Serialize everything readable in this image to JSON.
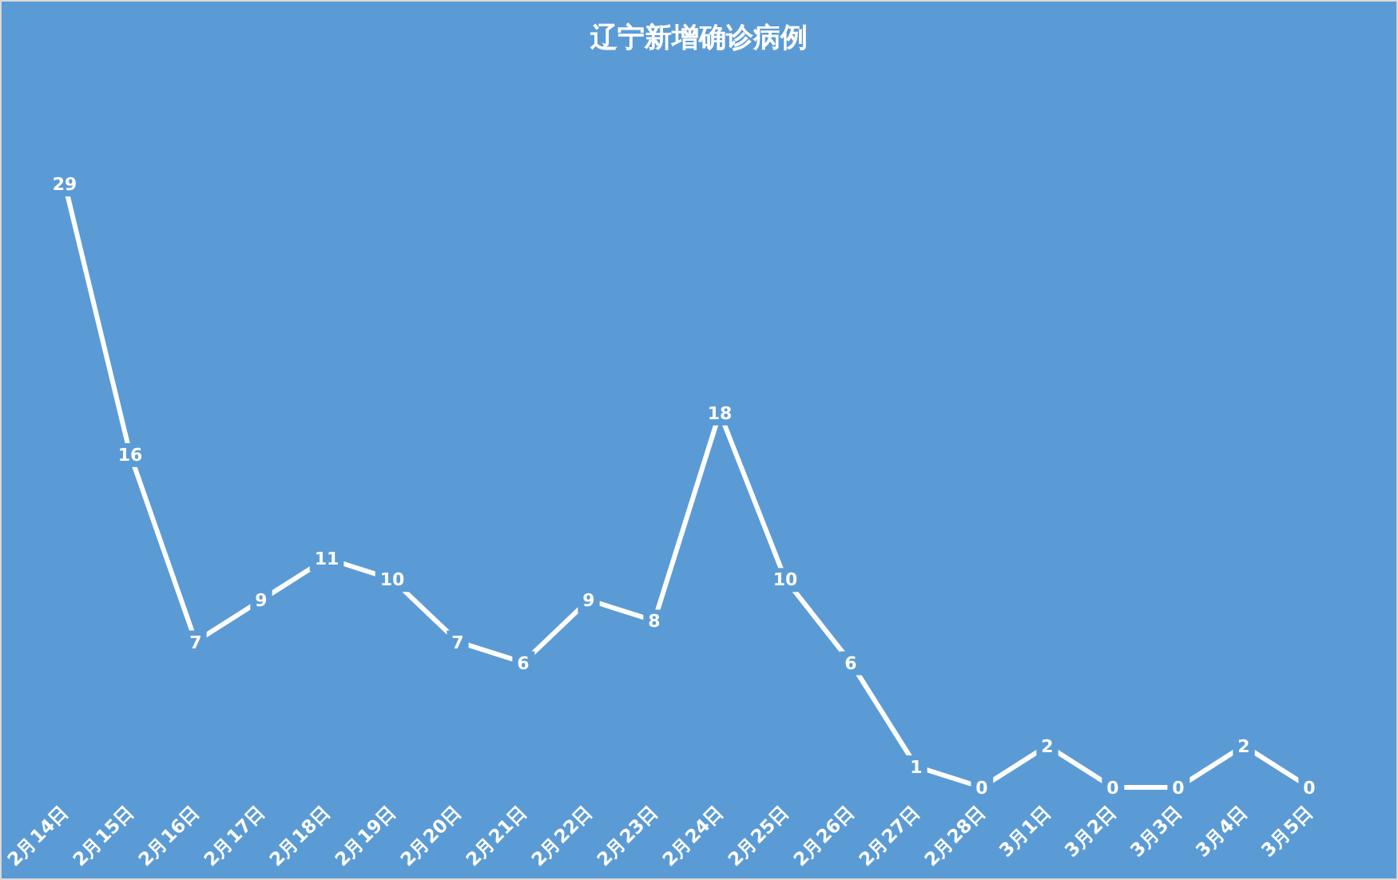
{
  "chart_data": {
    "type": "line",
    "title": "辽宁新增确诊病例",
    "categories": [
      "2月14日",
      "2月15日",
      "2月16日",
      "2月17日",
      "2月18日",
      "2月19日",
      "2月20日",
      "2月21日",
      "2月22日",
      "2月23日",
      "2月24日",
      "2月25日",
      "2月26日",
      "2月27日",
      "2月28日",
      "3月1日",
      "3月2日",
      "3月3日",
      "3月4日",
      "3月5日"
    ],
    "values": [
      29,
      16,
      7,
      9,
      11,
      10,
      7,
      6,
      9,
      8,
      18,
      10,
      6,
      1,
      0,
      2,
      0,
      0,
      2,
      0
    ],
    "color": "#ffffff",
    "marker": "none",
    "data_labels": true
  }
}
